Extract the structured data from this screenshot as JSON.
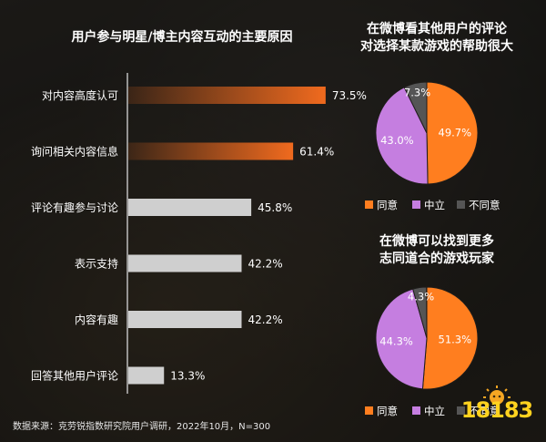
{
  "chart_data": [
    {
      "type": "bar",
      "orientation": "horizontal",
      "title": "用户参与明星/博主内容互动的主要原因",
      "categories": [
        "对内容高度认可",
        "询问相关内容信息",
        "评论有趣参与讨论",
        "表示支持",
        "内容有趣",
        "回答其他用户评论"
      ],
      "values": [
        73.5,
        61.4,
        45.8,
        42.2,
        42.2,
        13.3
      ],
      "value_labels": [
        "73.5%",
        "61.4%",
        "45.8%",
        "42.2%",
        "42.2%",
        "13.3%"
      ],
      "bar_colors": [
        "#f06a1e",
        "#f06a1e",
        "#cfcfcf",
        "#cfcfcf",
        "#cfcfcf",
        "#cfcfcf"
      ],
      "xlim": [
        0,
        100
      ],
      "grid": false
    },
    {
      "type": "pie",
      "title": "在微博看其他用户的评论\n对选择某款游戏的帮助很大",
      "labels": [
        "同意",
        "中立",
        "不同意"
      ],
      "values": [
        49.7,
        43.0,
        7.3
      ],
      "value_labels": [
        "49.7%",
        "43.0%",
        "7.3%"
      ],
      "colors": [
        "#ff7e1f",
        "#c57ee0",
        "#555555"
      ],
      "legend_placement": "bottom"
    },
    {
      "type": "pie",
      "title": "在微博可以找到更多\n志同道合的游戏玩家",
      "labels": [
        "同意",
        "中立",
        "不同意"
      ],
      "values": [
        51.3,
        44.3,
        4.3
      ],
      "value_labels": [
        "51.3%",
        "44.3%",
        "4.3%"
      ],
      "colors": [
        "#ff7e1f",
        "#c57ee0",
        "#555555"
      ],
      "legend_placement": "bottom"
    }
  ],
  "footer": "数据来源：克劳锐指数研究院用户调研，2022年10月，N=300",
  "logo": {
    "text": "18183",
    "icon": "sun-mascot-icon"
  },
  "colors": {
    "accent": "#f06a1e",
    "neutral": "#cfcfcf",
    "purple": "#c57ee0",
    "dark": "#555555"
  }
}
